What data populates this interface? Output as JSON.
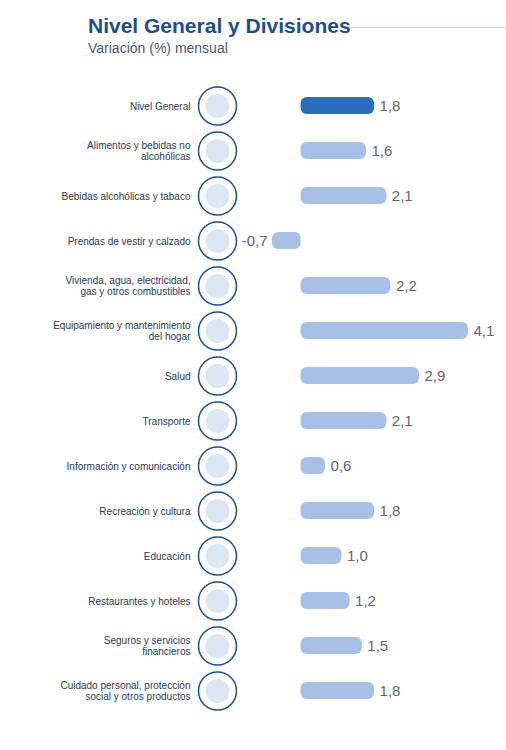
{
  "chart_data": {
    "type": "bar",
    "title": "Nivel General y Divisiones",
    "subtitle": "Variación (%) mensual",
    "orientation": "horizontal",
    "categories": [
      "Nivel General",
      "Alimentos y bebidas no alcohólicas",
      "Bebidas alcohólicas y tabaco",
      "Prendas de vestir y calzado",
      "Vivienda, agua, electricidad, gas y otros combustibles",
      "Equipamiento y mantenimiento del hogar",
      "Salud",
      "Transporte",
      "Información y comunicación",
      "Recreación y cultura",
      "Educación",
      "Restaurantes y hoteles",
      "Seguros y servicios financieros",
      "Cuidado personal, protección social y otros productos"
    ],
    "values": [
      1.8,
      1.6,
      2.1,
      -0.7,
      2.2,
      4.1,
      2.9,
      2.1,
      0.6,
      1.8,
      1.0,
      1.2,
      1.5,
      1.8
    ],
    "value_labels": [
      "1,8",
      "1,6",
      "2,1",
      "-0,7",
      "2,2",
      "4,1",
      "2,9",
      "2,1",
      "0,6",
      "1,8",
      "1,0",
      "1,2",
      "1,5",
      "1,8"
    ],
    "colors": [
      "#2a6ebb",
      "#a8bfe6",
      "#a8bfe6",
      "#a8bfe6",
      "#a8bfe6",
      "#a8bfe6",
      "#a8bfe6",
      "#a8bfe6",
      "#a8bfe6",
      "#a8bfe6",
      "#a8bfe6",
      "#a8bfe6",
      "#a8bfe6",
      "#a8bfe6"
    ],
    "data_labels": true,
    "tick_labels": false
  }
}
